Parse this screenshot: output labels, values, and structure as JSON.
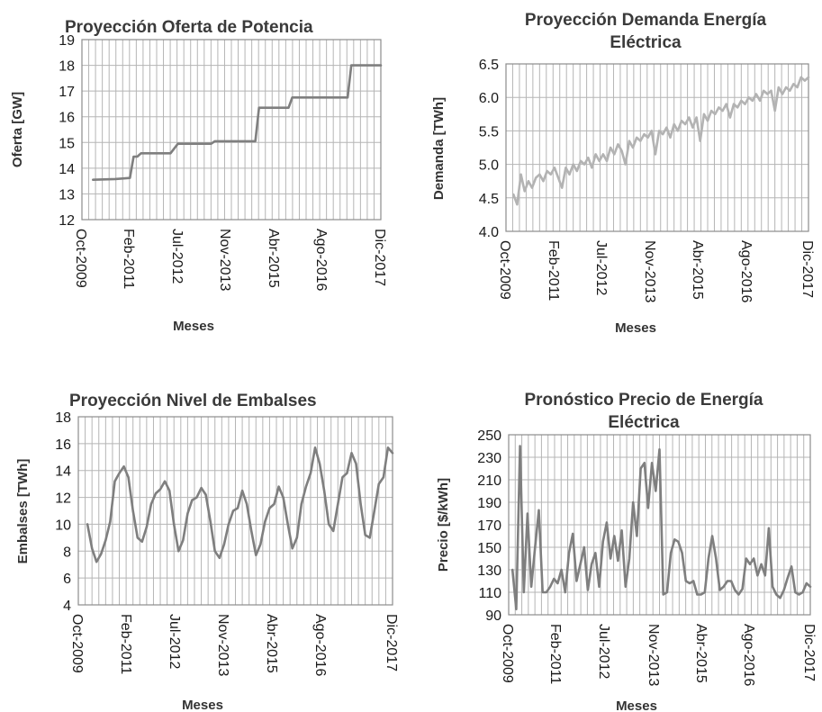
{
  "colors": {
    "line_dark": "#7f7f7f",
    "line_light": "#b3b3b3",
    "grid": "#b5b5b5",
    "text": "#1a1a1a"
  },
  "chart_data": [
    {
      "id": "oferta",
      "type": "line",
      "title": [
        "Proyección Oferta de Potencia"
      ],
      "xlabel": "Meses",
      "ylabel": "Oferta [GW]",
      "x_tick_labels": [
        "Oct-2009",
        "Feb-2011",
        "Jul-2012",
        "Nov-2013",
        "Abr-2015",
        "Ago-2016",
        "Dic-2017"
      ],
      "ylim": [
        12,
        19
      ],
      "y_ticks": [
        "12",
        "13",
        "14",
        "15",
        "16",
        "17",
        "18",
        "19"
      ],
      "y_tick_values": [
        12,
        13,
        14,
        15,
        16,
        17,
        18,
        19
      ],
      "grid": true,
      "series": [
        {
          "color": "#7f7f7f",
          "points": [
            [
              3,
              13.55
            ],
            [
              9,
              13.58
            ],
            [
              13,
              13.62
            ],
            [
              14,
              14.45
            ],
            [
              15,
              14.45
            ],
            [
              16,
              14.58
            ],
            [
              24,
              14.58
            ],
            [
              26,
              14.95
            ],
            [
              35,
              14.95
            ],
            [
              36,
              15.05
            ],
            [
              47,
              15.05
            ],
            [
              48,
              16.35
            ],
            [
              56,
              16.35
            ],
            [
              57,
              16.75
            ],
            [
              72,
              16.75
            ],
            [
              73,
              18.0
            ],
            [
              81,
              18.0
            ]
          ]
        }
      ]
    },
    {
      "id": "demanda",
      "type": "line",
      "title": [
        "Proyección Demanda Energía",
        "Eléctrica"
      ],
      "xlabel": "Meses",
      "ylabel": "Demanda [TWh]",
      "x_tick_labels": [
        "Oct-2009",
        "Feb-2011",
        "Jul-2012",
        "Nov-2013",
        "Abr-2015",
        "Ago-2016",
        "Dic-2017"
      ],
      "ylim": [
        4.0,
        6.5
      ],
      "y_ticks": [
        "4.0",
        "4.5",
        "5.0",
        "5.5",
        "6.0",
        "6.5"
      ],
      "y_tick_values": [
        4.0,
        4.5,
        5.0,
        5.5,
        6.0,
        6.5
      ],
      "grid": true,
      "series": [
        {
          "color": "#b3b3b3",
          "points": [
            [
              2,
              4.55
            ],
            [
              3,
              4.4
            ],
            [
              4,
              4.85
            ],
            [
              5,
              4.6
            ],
            [
              6,
              4.75
            ],
            [
              7,
              4.65
            ],
            [
              8,
              4.8
            ],
            [
              9,
              4.85
            ],
            [
              10,
              4.75
            ],
            [
              11,
              4.9
            ],
            [
              12,
              4.85
            ],
            [
              13,
              4.95
            ],
            [
              14,
              4.8
            ],
            [
              15,
              4.65
            ],
            [
              16,
              4.95
            ],
            [
              17,
              4.85
            ],
            [
              18,
              5.0
            ],
            [
              19,
              4.9
            ],
            [
              20,
              5.05
            ],
            [
              21,
              5.0
            ],
            [
              22,
              5.1
            ],
            [
              23,
              4.95
            ],
            [
              24,
              5.15
            ],
            [
              25,
              5.05
            ],
            [
              26,
              5.15
            ],
            [
              27,
              5.05
            ],
            [
              28,
              5.25
            ],
            [
              29,
              5.15
            ],
            [
              30,
              5.3
            ],
            [
              31,
              5.2
            ],
            [
              32,
              5.0
            ],
            [
              33,
              5.35
            ],
            [
              34,
              5.25
            ],
            [
              35,
              5.4
            ],
            [
              36,
              5.35
            ],
            [
              37,
              5.45
            ],
            [
              38,
              5.4
            ],
            [
              39,
              5.5
            ],
            [
              40,
              5.15
            ],
            [
              41,
              5.5
            ],
            [
              42,
              5.45
            ],
            [
              43,
              5.55
            ],
            [
              44,
              5.4
            ],
            [
              45,
              5.6
            ],
            [
              46,
              5.5
            ],
            [
              47,
              5.65
            ],
            [
              48,
              5.6
            ],
            [
              49,
              5.7
            ],
            [
              50,
              5.55
            ],
            [
              51,
              5.7
            ],
            [
              52,
              5.35
            ],
            [
              53,
              5.75
            ],
            [
              54,
              5.65
            ],
            [
              55,
              5.8
            ],
            [
              56,
              5.75
            ],
            [
              57,
              5.85
            ],
            [
              58,
              5.8
            ],
            [
              59,
              5.9
            ],
            [
              60,
              5.7
            ],
            [
              61,
              5.9
            ],
            [
              62,
              5.85
            ],
            [
              63,
              5.95
            ],
            [
              64,
              5.9
            ],
            [
              65,
              6.0
            ],
            [
              66,
              5.95
            ],
            [
              67,
              6.05
            ],
            [
              68,
              5.95
            ],
            [
              69,
              6.1
            ],
            [
              70,
              6.05
            ],
            [
              71,
              6.1
            ],
            [
              72,
              5.8
            ],
            [
              73,
              6.15
            ],
            [
              74,
              6.05
            ],
            [
              75,
              6.15
            ],
            [
              76,
              6.1
            ],
            [
              77,
              6.2
            ],
            [
              78,
              6.15
            ],
            [
              79,
              6.3
            ],
            [
              80,
              6.25
            ],
            [
              81,
              6.3
            ]
          ]
        }
      ]
    },
    {
      "id": "embalses",
      "type": "line",
      "title": [
        "Proyección Nivel de Embalses"
      ],
      "xlabel": "Meses",
      "ylabel": "Embalses [TWh]",
      "x_tick_labels": [
        "Oct-2009",
        "Feb-2011",
        "Jul-2012",
        "Nov-2013",
        "Abr-2015",
        "Ago-2016",
        "Dic-2017"
      ],
      "ylim": [
        4,
        18
      ],
      "y_ticks": [
        "4",
        "6",
        "8",
        "10",
        "12",
        "14",
        "16",
        "18"
      ],
      "y_tick_values": [
        4,
        6,
        8,
        10,
        12,
        14,
        16,
        18
      ],
      "grid": true,
      "series": [
        {
          "color": "#7f7f7f",
          "points": [
            [
              2,
              10.0
            ],
            [
              3,
              8.2
            ],
            [
              4,
              7.2
            ],
            [
              5,
              7.8
            ],
            [
              6,
              8.8
            ],
            [
              7,
              10.2
            ],
            [
              8,
              13.2
            ],
            [
              9,
              13.8
            ],
            [
              10,
              14.3
            ],
            [
              11,
              13.5
            ],
            [
              12,
              11.0
            ],
            [
              13,
              9.0
            ],
            [
              14,
              8.7
            ],
            [
              15,
              9.8
            ],
            [
              16,
              11.5
            ],
            [
              17,
              12.3
            ],
            [
              18,
              12.6
            ],
            [
              19,
              13.2
            ],
            [
              20,
              12.5
            ],
            [
              21,
              10.0
            ],
            [
              22,
              8.0
            ],
            [
              23,
              8.8
            ],
            [
              24,
              10.8
            ],
            [
              25,
              11.8
            ],
            [
              26,
              12.0
            ],
            [
              27,
              12.7
            ],
            [
              28,
              12.2
            ],
            [
              29,
              10.2
            ],
            [
              30,
              8.0
            ],
            [
              31,
              7.5
            ],
            [
              32,
              8.5
            ],
            [
              33,
              10.0
            ],
            [
              34,
              11.0
            ],
            [
              35,
              11.2
            ],
            [
              36,
              12.5
            ],
            [
              37,
              11.5
            ],
            [
              38,
              9.5
            ],
            [
              39,
              7.7
            ],
            [
              40,
              8.5
            ],
            [
              41,
              10.2
            ],
            [
              42,
              11.2
            ],
            [
              43,
              11.5
            ],
            [
              44,
              12.8
            ],
            [
              45,
              12.0
            ],
            [
              46,
              10.0
            ],
            [
              47,
              8.2
            ],
            [
              48,
              9.0
            ],
            [
              49,
              11.5
            ],
            [
              50,
              12.8
            ],
            [
              51,
              13.8
            ],
            [
              52,
              15.7
            ],
            [
              53,
              14.5
            ],
            [
              54,
              12.5
            ],
            [
              55,
              10.0
            ],
            [
              56,
              9.5
            ],
            [
              57,
              11.5
            ],
            [
              58,
              13.5
            ],
            [
              59,
              13.8
            ],
            [
              60,
              15.3
            ],
            [
              61,
              14.5
            ],
            [
              62,
              11.5
            ],
            [
              63,
              9.2
            ],
            [
              64,
              9.0
            ],
            [
              65,
              11.0
            ],
            [
              66,
              13.0
            ],
            [
              67,
              13.5
            ],
            [
              68,
              15.7
            ],
            [
              69,
              15.3
            ]
          ]
        }
      ]
    },
    {
      "id": "precio",
      "type": "line",
      "title": [
        "Pronóstico Precio de Energía",
        "Eléctrica"
      ],
      "xlabel": "Meses",
      "ylabel": "Precio [$/kWh]",
      "x_tick_labels": [
        "Oct-2009",
        "Feb-2011",
        "Jul-2012",
        "Nov-2013",
        "Abr-2015",
        "Ago-2016",
        "Dic-2017"
      ],
      "ylim": [
        90,
        250
      ],
      "y_ticks": [
        "90",
        "110",
        "130",
        "150",
        "170",
        "190",
        "210",
        "230",
        "250"
      ],
      "y_tick_values": [
        90,
        110,
        130,
        150,
        170,
        190,
        210,
        230,
        250
      ],
      "grid": true,
      "series": [
        {
          "color": "#7f7f7f",
          "points": [
            [
              1,
              130
            ],
            [
              2,
              95
            ],
            [
              3,
              240
            ],
            [
              4,
              110
            ],
            [
              5,
              180
            ],
            [
              6,
              115
            ],
            [
              7,
              150
            ],
            [
              8,
              183
            ],
            [
              9,
              110
            ],
            [
              10,
              110
            ],
            [
              11,
              115
            ],
            [
              12,
              122
            ],
            [
              13,
              118
            ],
            [
              14,
              130
            ],
            [
              15,
              110
            ],
            [
              16,
              145
            ],
            [
              17,
              162
            ],
            [
              18,
              120
            ],
            [
              19,
              135
            ],
            [
              20,
              150
            ],
            [
              21,
              112
            ],
            [
              22,
              135
            ],
            [
              23,
              145
            ],
            [
              24,
              115
            ],
            [
              25,
              155
            ],
            [
              26,
              172
            ],
            [
              27,
              140
            ],
            [
              28,
              160
            ],
            [
              29,
              138
            ],
            [
              30,
              165
            ],
            [
              31,
              115
            ],
            [
              32,
              140
            ],
            [
              33,
              190
            ],
            [
              34,
              160
            ],
            [
              35,
              220
            ],
            [
              36,
              225
            ],
            [
              37,
              185
            ],
            [
              38,
              225
            ],
            [
              39,
              200
            ],
            [
              40,
              237
            ],
            [
              41,
              108
            ],
            [
              42,
              110
            ],
            [
              43,
              145
            ],
            [
              44,
              157
            ],
            [
              45,
              155
            ],
            [
              46,
              145
            ],
            [
              47,
              120
            ],
            [
              48,
              118
            ],
            [
              49,
              120
            ],
            [
              50,
              108
            ],
            [
              51,
              108
            ],
            [
              52,
              110
            ],
            [
              53,
              140
            ],
            [
              54,
              160
            ],
            [
              55,
              140
            ],
            [
              56,
              112
            ],
            [
              57,
              115
            ],
            [
              58,
              120
            ],
            [
              59,
              120
            ],
            [
              60,
              112
            ],
            [
              61,
              108
            ],
            [
              62,
              113
            ],
            [
              63,
              140
            ],
            [
              64,
              135
            ],
            [
              65,
              140
            ],
            [
              66,
              125
            ],
            [
              67,
              135
            ],
            [
              68,
              125
            ],
            [
              69,
              167
            ],
            [
              70,
              115
            ],
            [
              71,
              108
            ],
            [
              72,
              105
            ],
            [
              73,
              112
            ],
            [
              74,
              123
            ],
            [
              75,
              133
            ],
            [
              76,
              110
            ],
            [
              77,
              108
            ],
            [
              78,
              110
            ],
            [
              79,
              118
            ],
            [
              80,
              115
            ]
          ]
        }
      ]
    }
  ]
}
